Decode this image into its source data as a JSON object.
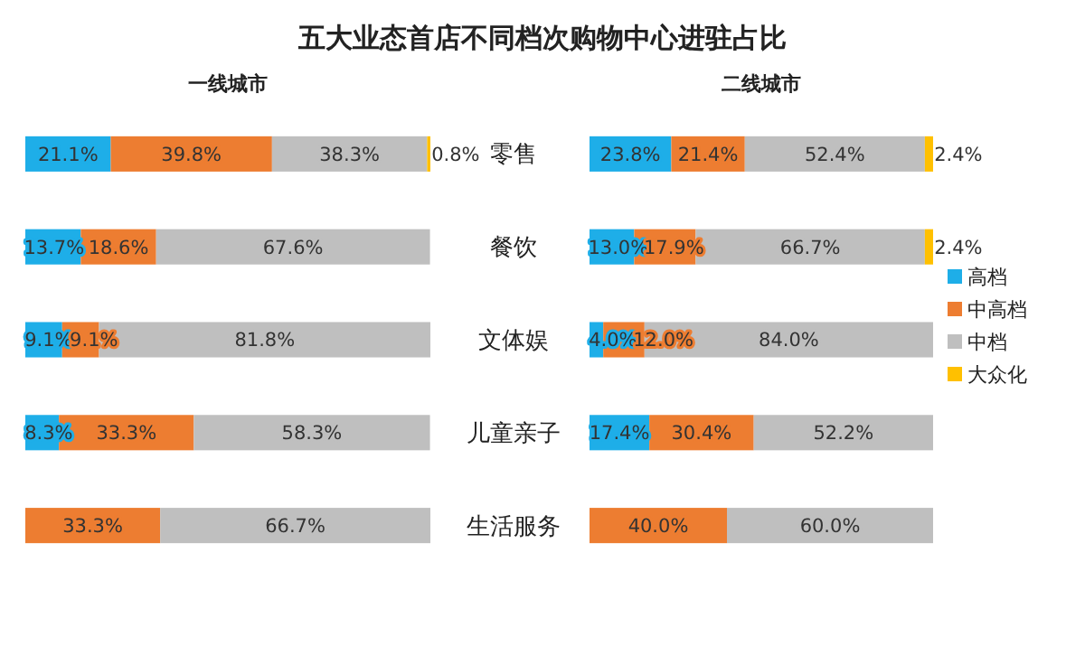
{
  "chart_data": [
    {
      "type": "bar",
      "orientation": "horizontal",
      "stacked": true,
      "title": "五大业态首店不同档次购物中心进驻占比",
      "subtitle": "一线城市",
      "categories": [
        "零售",
        "餐饮",
        "文体娱",
        "儿童亲子",
        "生活服务"
      ],
      "xlim": [
        0,
        100
      ],
      "tick_labels": "y",
      "legend": false,
      "series": [
        {
          "color": "#1eaee8",
          "values": [
            21.1,
            13.7,
            9.1,
            8.3,
            null
          ],
          "value_labels": [
            "21.1%",
            "13.7%",
            "9.1%",
            "8.3%",
            null
          ]
        },
        {
          "color": "#ed7d31",
          "values": [
            39.8,
            18.6,
            9.1,
            33.3,
            33.3
          ],
          "value_labels": [
            "39.8%",
            "18.6%",
            "9.1%",
            "33.3%",
            "33.3%"
          ]
        },
        {
          "color": "#bfbfbf",
          "values": [
            38.3,
            67.6,
            81.8,
            58.3,
            66.7
          ],
          "value_labels": [
            "38.3%",
            "67.6%",
            "81.8%",
            "58.3%",
            "66.7%"
          ]
        },
        {
          "color": "#ffc000",
          "values": [
            0.8,
            null,
            null,
            null,
            null
          ],
          "value_labels": [
            "0.8%",
            null,
            null,
            null,
            null
          ]
        }
      ]
    },
    {
      "type": "bar",
      "orientation": "horizontal",
      "stacked": true,
      "title": "二线城市",
      "categories": [
        null,
        null,
        null,
        null,
        null
      ],
      "xlim": [
        0,
        100
      ],
      "tick_labels": false,
      "legend": "right",
      "series": [
        {
          "name": "高档",
          "color": "#1eaee8",
          "values": [
            23.8,
            13.0,
            4.0,
            17.4,
            null
          ],
          "value_labels": [
            "23.8%",
            "13.0%",
            "4.0%",
            "17.4%",
            null
          ]
        },
        {
          "name": "中高档",
          "color": "#ed7d31",
          "values": [
            21.4,
            17.9,
            12.0,
            30.4,
            40.0
          ],
          "value_labels": [
            "21.4%",
            "17.9%",
            "12.0%",
            "30.4%",
            "40.0%"
          ]
        },
        {
          "name": "中档",
          "color": "#bfbfbf",
          "values": [
            52.4,
            66.7,
            84.0,
            52.2,
            60.0
          ],
          "value_labels": [
            "52.4%",
            "66.7%",
            "84.0%",
            "52.2%",
            "60.0%"
          ]
        },
        {
          "name": "大众化",
          "color": "#ffc000",
          "values": [
            2.4,
            2.4,
            null,
            null,
            null
          ],
          "value_labels": [
            "2.4%",
            "2.4%",
            null,
            null,
            null
          ]
        }
      ]
    }
  ]
}
